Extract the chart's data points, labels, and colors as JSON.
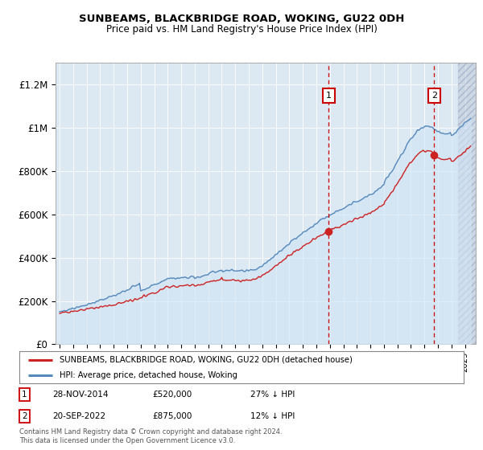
{
  "title1": "SUNBEAMS, BLACKBRIDGE ROAD, WOKING, GU22 0DH",
  "title2": "Price paid vs. HM Land Registry's House Price Index (HPI)",
  "ylabel_ticks": [
    "£0",
    "£200K",
    "£400K",
    "£600K",
    "£800K",
    "£1M",
    "£1.2M"
  ],
  "ytick_values": [
    0,
    200000,
    400000,
    600000,
    800000,
    1000000,
    1200000
  ],
  "ylim": [
    0,
    1300000
  ],
  "xlim_start": 1994.7,
  "xlim_end": 2025.8,
  "hpi_color": "#5588bb",
  "price_color": "#cc2222",
  "hpi_fill_color": "#d0e4f5",
  "marker1_x": 2014.91,
  "marker1_y": 520000,
  "marker2_x": 2022.72,
  "marker2_y": 875000,
  "legend_label1": "SUNBEAMS, BLACKBRIDGE ROAD, WOKING, GU22 0DH (detached house)",
  "legend_label2": "HPI: Average price, detached house, Woking",
  "footer": "Contains HM Land Registry data © Crown copyright and database right 2024.\nThis data is licensed under the Open Government Licence v3.0.",
  "background_color": "#ffffff",
  "plot_bg_color": "#dce8f2"
}
